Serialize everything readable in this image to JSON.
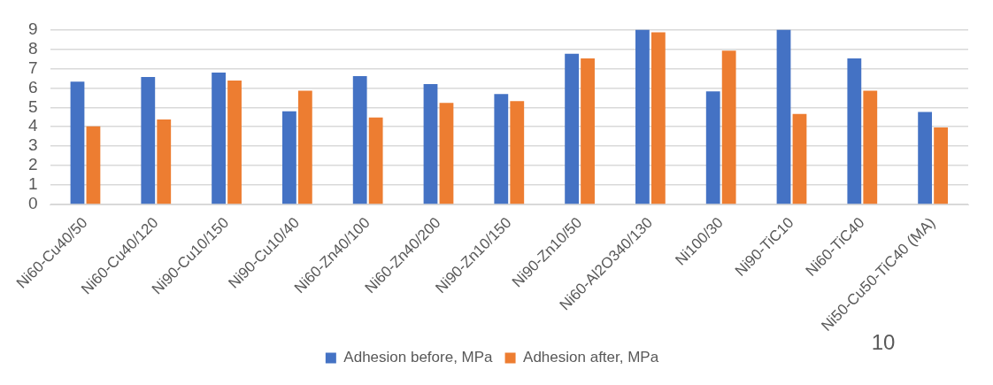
{
  "chart_data": {
    "type": "bar",
    "categories": [
      "Ni60-Cu40/50",
      "Ni60-Cu40/120",
      "Ni90-Cu10/150",
      "Ni90-Cu10/40",
      "Ni60-Zn40/100",
      "Ni60-Zn40/200",
      "Ni90-Zn10/150",
      "Ni90-Zn10/50",
      "Ni60-Al2O340/130",
      "Ni100/30",
      "Ni90-TiC10",
      "Ni60-TiC40",
      "Ni50-Cu50-TiC40 (MA)"
    ],
    "series": [
      {
        "name": "Adhesion before, MPa",
        "color": "#4472c4",
        "values": [
          6.32,
          6.56,
          6.79,
          4.8,
          6.61,
          6.2,
          5.68,
          7.76,
          9,
          5.82,
          9,
          7.52,
          4.76
        ]
      },
      {
        "name": "Adhesion after, MPa",
        "color": "#ed7d31",
        "values": [
          4.02,
          4.38,
          6.38,
          5.85,
          4.48,
          5.23,
          5.32,
          7.52,
          8.86,
          7.91,
          4.66,
          5.85,
          3.96
        ]
      }
    ],
    "ylim": [
      0,
      9
    ],
    "yticks": [
      0,
      1,
      2,
      3,
      4,
      5,
      6,
      7,
      8,
      9
    ],
    "grid": "y",
    "legend": "bottom",
    "annotations": [
      "10"
    ]
  }
}
